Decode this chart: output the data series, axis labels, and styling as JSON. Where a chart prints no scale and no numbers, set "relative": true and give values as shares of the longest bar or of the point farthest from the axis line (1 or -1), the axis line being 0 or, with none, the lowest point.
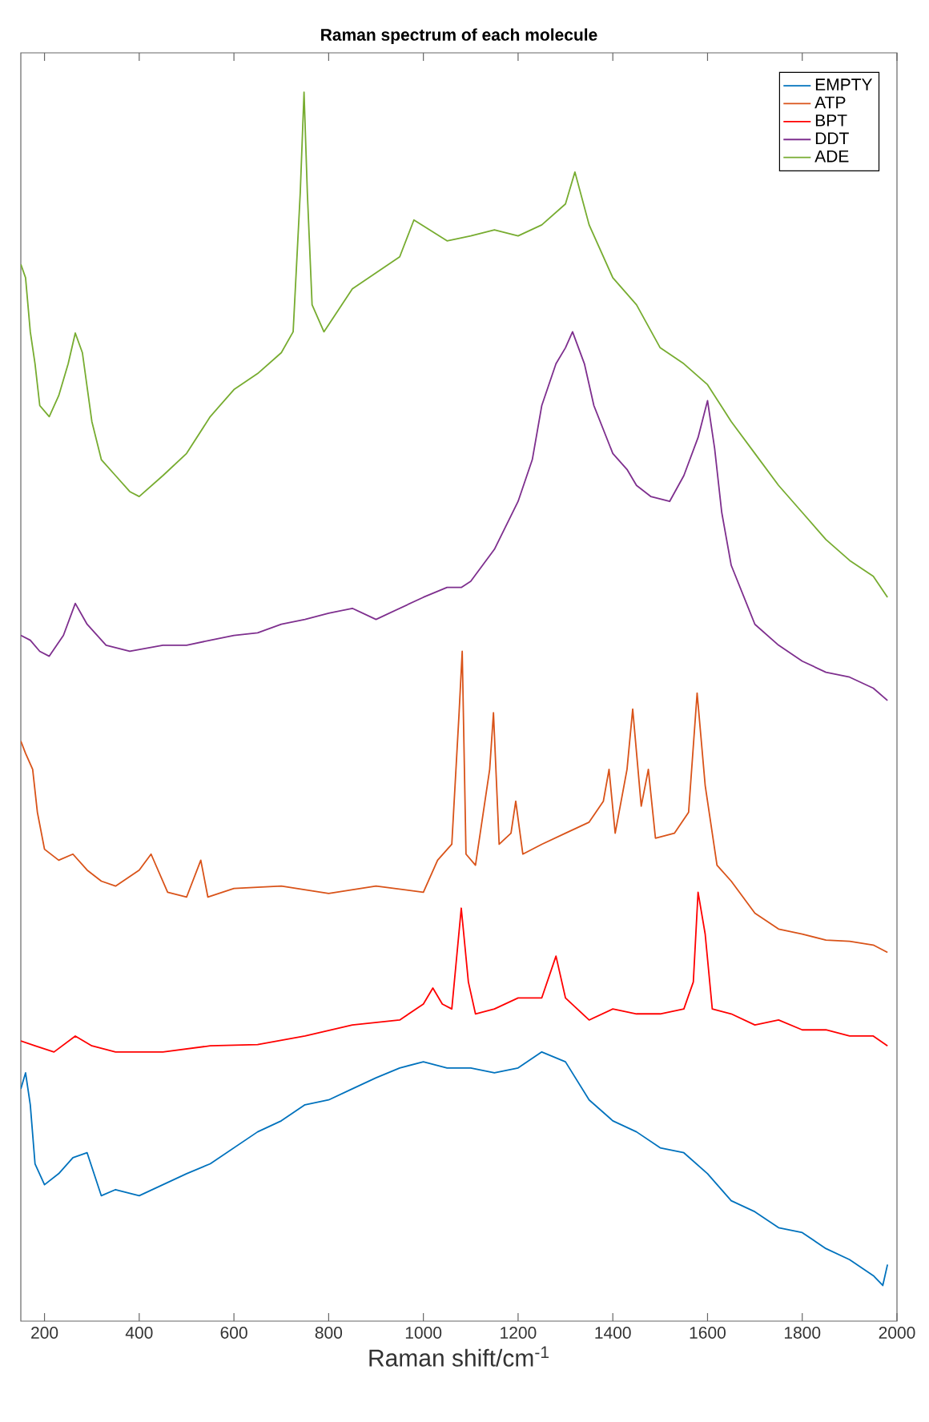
{
  "chart_data": {
    "type": "line",
    "title": "Raman spectrum of each molecule",
    "xlabel": "Raman shift/cm$^{-1}$",
    "relative": true,
    "xlim": [
      150,
      2000
    ],
    "xticks": [
      200,
      400,
      600,
      800,
      1000,
      1200,
      1400,
      1600,
      1800,
      2000
    ],
    "legend": "top right",
    "marker": "none",
    "line_style": "solid",
    "series": [
      {
        "name": "EMPTY",
        "color": "#0072bd",
        "x": [
          150,
          160,
          170,
          180,
          200,
          230,
          260,
          290,
          320,
          350,
          400,
          450,
          500,
          550,
          600,
          650,
          700,
          750,
          800,
          850,
          900,
          950,
          1000,
          1050,
          1100,
          1150,
          1200,
          1250,
          1300,
          1350,
          1400,
          1450,
          1500,
          1550,
          1600,
          1650,
          1700,
          1750,
          1800,
          1850,
          1900,
          1950,
          1970,
          1980
        ],
        "values": [
          0.189,
          0.202,
          0.176,
          0.128,
          0.111,
          0.12,
          0.133,
          0.137,
          0.102,
          0.107,
          0.102,
          0.111,
          0.12,
          0.128,
          0.141,
          0.154,
          0.163,
          0.176,
          0.18,
          0.189,
          0.198,
          0.206,
          0.211,
          0.206,
          0.206,
          0.202,
          0.206,
          0.219,
          0.211,
          0.18,
          0.163,
          0.154,
          0.141,
          0.137,
          0.12,
          0.098,
          0.089,
          0.076,
          0.072,
          0.059,
          0.05,
          0.037,
          0.029,
          0.046
        ]
      },
      {
        "name": "ATP",
        "color": "#d95319",
        "x": [
          150,
          160,
          175,
          185,
          200,
          230,
          260,
          290,
          320,
          350,
          400,
          425,
          460,
          500,
          530,
          545,
          600,
          700,
          800,
          900,
          1000,
          1030,
          1060,
          1075,
          1082,
          1090,
          1110,
          1140,
          1148,
          1160,
          1185,
          1195,
          1210,
          1250,
          1300,
          1350,
          1380,
          1392,
          1405,
          1430,
          1442,
          1460,
          1475,
          1490,
          1530,
          1560,
          1578,
          1595,
          1620,
          1650,
          1700,
          1750,
          1800,
          1850,
          1900,
          1950,
          1980
        ],
        "values": [
          0.472,
          0.462,
          0.449,
          0.414,
          0.384,
          0.375,
          0.38,
          0.367,
          0.358,
          0.354,
          0.367,
          0.38,
          0.349,
          0.345,
          0.375,
          0.345,
          0.352,
          0.354,
          0.348,
          0.354,
          0.349,
          0.375,
          0.388,
          0.492,
          0.545,
          0.38,
          0.371,
          0.449,
          0.495,
          0.388,
          0.397,
          0.423,
          0.38,
          0.388,
          0.397,
          0.406,
          0.423,
          0.449,
          0.397,
          0.449,
          0.498,
          0.419,
          0.449,
          0.393,
          0.397,
          0.414,
          0.511,
          0.436,
          0.371,
          0.358,
          0.332,
          0.319,
          0.315,
          0.31,
          0.309,
          0.306,
          0.3
        ]
      },
      {
        "name": "BPT",
        "color": "#ff0000",
        "x": [
          150,
          180,
          220,
          265,
          300,
          350,
          450,
          550,
          650,
          750,
          850,
          950,
          1000,
          1020,
          1040,
          1060,
          1080,
          1095,
          1110,
          1150,
          1200,
          1250,
          1280,
          1300,
          1350,
          1400,
          1450,
          1500,
          1550,
          1570,
          1580,
          1595,
          1610,
          1650,
          1700,
          1750,
          1800,
          1850,
          1900,
          1950,
          1980
        ],
        "values": [
          0.228,
          0.224,
          0.219,
          0.232,
          0.224,
          0.219,
          0.219,
          0.224,
          0.225,
          0.232,
          0.241,
          0.245,
          0.258,
          0.271,
          0.258,
          0.254,
          0.336,
          0.276,
          0.25,
          0.254,
          0.263,
          0.263,
          0.297,
          0.263,
          0.245,
          0.254,
          0.25,
          0.25,
          0.254,
          0.276,
          0.349,
          0.315,
          0.254,
          0.25,
          0.241,
          0.245,
          0.237,
          0.237,
          0.232,
          0.232,
          0.224
        ]
      },
      {
        "name": "DDT",
        "color": "#7e2f8e",
        "x": [
          150,
          170,
          190,
          210,
          240,
          265,
          290,
          330,
          380,
          450,
          500,
          550,
          600,
          650,
          700,
          750,
          800,
          850,
          900,
          950,
          1000,
          1050,
          1080,
          1100,
          1150,
          1200,
          1230,
          1250,
          1280,
          1300,
          1315,
          1340,
          1360,
          1400,
          1430,
          1450,
          1480,
          1520,
          1550,
          1580,
          1600,
          1615,
          1630,
          1650,
          1700,
          1750,
          1800,
          1850,
          1900,
          1950,
          1980
        ],
        "values": [
          0.558,
          0.554,
          0.545,
          0.541,
          0.558,
          0.584,
          0.567,
          0.55,
          0.545,
          0.55,
          0.55,
          0.554,
          0.558,
          0.56,
          0.567,
          0.571,
          0.576,
          0.58,
          0.571,
          0.58,
          0.589,
          0.597,
          0.597,
          0.602,
          0.628,
          0.667,
          0.701,
          0.745,
          0.779,
          0.792,
          0.805,
          0.779,
          0.745,
          0.706,
          0.693,
          0.68,
          0.671,
          0.667,
          0.688,
          0.719,
          0.749,
          0.71,
          0.658,
          0.615,
          0.567,
          0.55,
          0.537,
          0.528,
          0.524,
          0.515,
          0.505
        ]
      },
      {
        "name": "ADE",
        "color": "#77ac30",
        "x": [
          150,
          160,
          170,
          180,
          190,
          210,
          230,
          250,
          265,
          280,
          300,
          320,
          350,
          380,
          400,
          450,
          500,
          550,
          600,
          650,
          700,
          725,
          740,
          748,
          755,
          765,
          790,
          850,
          900,
          950,
          980,
          1050,
          1100,
          1150,
          1200,
          1250,
          1300,
          1320,
          1350,
          1400,
          1450,
          1500,
          1550,
          1600,
          1650,
          1700,
          1750,
          1800,
          1850,
          1900,
          1950,
          1980
        ],
        "values": [
          0.86,
          0.849,
          0.805,
          0.779,
          0.745,
          0.736,
          0.753,
          0.779,
          0.804,
          0.788,
          0.732,
          0.701,
          0.688,
          0.675,
          0.671,
          0.688,
          0.706,
          0.736,
          0.758,
          0.771,
          0.788,
          0.805,
          0.918,
          1.0,
          0.918,
          0.827,
          0.805,
          0.84,
          0.853,
          0.866,
          0.896,
          0.879,
          0.883,
          0.888,
          0.883,
          0.892,
          0.909,
          0.935,
          0.892,
          0.849,
          0.827,
          0.792,
          0.779,
          0.762,
          0.732,
          0.706,
          0.68,
          0.658,
          0.636,
          0.619,
          0.606,
          0.589
        ]
      }
    ]
  }
}
